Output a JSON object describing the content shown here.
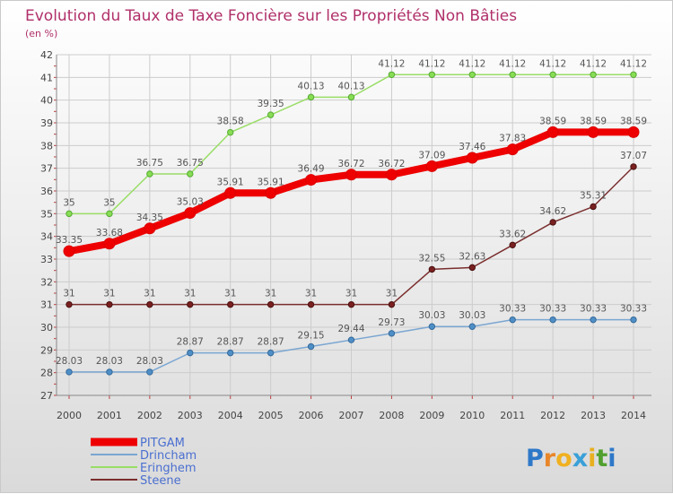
{
  "chart_data": {
    "type": "line",
    "title": "Evolution du Taux de Taxe Foncière sur les Propriétés Non Bâties",
    "subtitle": "(en %)",
    "xlabel": "",
    "ylabel": "",
    "categories": [
      "2000",
      "2001",
      "2002",
      "2003",
      "2004",
      "2005",
      "2006",
      "2007",
      "2008",
      "2009",
      "2010",
      "2011",
      "2012",
      "2013",
      "2014"
    ],
    "ylim": [
      27,
      42
    ],
    "yticks": [
      27,
      28,
      29,
      30,
      31,
      32,
      33,
      34,
      35,
      36,
      37,
      38,
      39,
      40,
      41,
      42
    ],
    "grid": true,
    "legend_position": "bottom-left",
    "series": [
      {
        "name": "PITGAM",
        "color": "#ee0000",
        "values": [
          33.35,
          33.68,
          34.35,
          35.03,
          35.91,
          35.91,
          36.49,
          36.72,
          36.72,
          37.09,
          37.46,
          37.83,
          38.59,
          38.59,
          38.59
        ],
        "labels": [
          "33.35",
          "33.68",
          "34.35",
          "35.03",
          "35.91",
          "35.91",
          "36.49",
          "36.72",
          "36.72",
          "37.09",
          "37.46",
          "37.83",
          "38.59",
          "38.59",
          "38.59"
        ]
      },
      {
        "name": "Drincham",
        "color": "#6f9fcf",
        "values": [
          28.03,
          28.03,
          28.03,
          28.87,
          28.87,
          28.87,
          29.15,
          29.44,
          29.73,
          30.03,
          30.03,
          30.33,
          30.33,
          30.33,
          30.33
        ],
        "labels": [
          "28.03",
          "28.03",
          "28.03",
          "28.87",
          "28.87",
          "28.87",
          "29.15",
          "29.44",
          "29.73",
          "30.03",
          "30.03",
          "30.33",
          "30.33",
          "30.33",
          "30.33"
        ]
      },
      {
        "name": "Eringhem",
        "color": "#99dd66",
        "values": [
          35,
          35,
          36.75,
          36.75,
          38.58,
          39.35,
          40.13,
          40.13,
          41.12,
          41.12,
          41.12,
          41.12,
          41.12,
          41.12,
          41.12
        ],
        "labels": [
          "35",
          "35",
          "36.75",
          "36.75",
          "38.58",
          "39.35",
          "40.13",
          "40.13",
          "41.12",
          "41.12",
          "41.12",
          "41.12",
          "41.12",
          "41.12",
          "41.12"
        ]
      },
      {
        "name": "Steene",
        "color": "#7a2e2e",
        "values": [
          31,
          31,
          31,
          31,
          31,
          31,
          31,
          31,
          31,
          32.55,
          32.63,
          33.62,
          34.62,
          35.31,
          37.07
        ],
        "labels": [
          "31",
          "31",
          "31",
          "31",
          "31",
          "31",
          "31",
          "31",
          "31",
          "32.55",
          "32.63",
          "33.62",
          "34.62",
          "35.31",
          "37.07"
        ]
      }
    ]
  },
  "logo": {
    "text": "Proxiti",
    "chars": [
      "P",
      "r",
      "o",
      "x",
      "i",
      "t",
      "i"
    ]
  }
}
